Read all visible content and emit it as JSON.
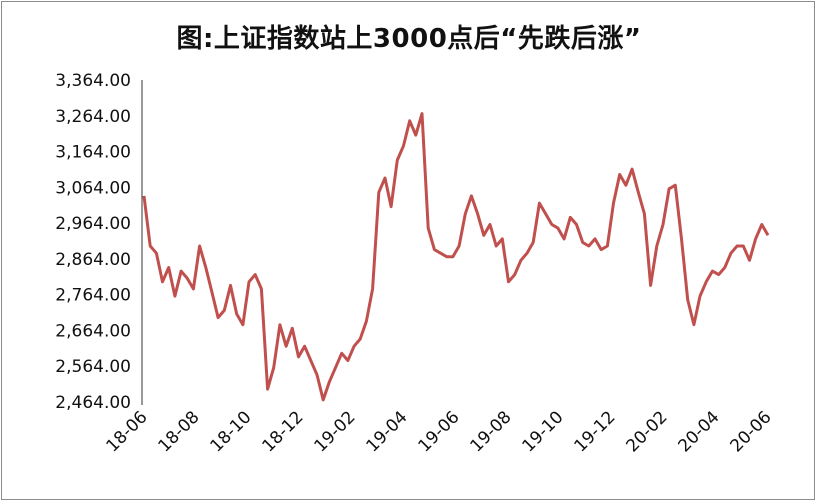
{
  "chart_data": {
    "type": "line",
    "title": "图:上证指数站上3000点后“先跌后涨”",
    "xlabel": "",
    "ylabel": "",
    "ylim": [
      2464,
      3364
    ],
    "y_ticks": [
      "3,364.00",
      "3,264.00",
      "3,164.00",
      "3,064.00",
      "2,964.00",
      "2,864.00",
      "2,764.00",
      "2,664.00",
      "2,564.00",
      "2,464.00"
    ],
    "x_ticks": [
      "18-06",
      "18-08",
      "18-10",
      "18-12",
      "19-02",
      "19-04",
      "19-06",
      "19-08",
      "19-10",
      "19-12",
      "20-02",
      "20-04",
      "20-06"
    ],
    "grid": false,
    "legend": "none",
    "line_color": "#c0504d",
    "series": [
      {
        "x": [
          "18-06",
          "18-06",
          "18-06",
          "18-06",
          "18-07",
          "18-07",
          "18-07",
          "18-07",
          "18-07",
          "18-08",
          "18-08",
          "18-08",
          "18-08",
          "18-09",
          "18-09",
          "18-09",
          "18-09",
          "18-10",
          "18-10",
          "18-10",
          "18-10",
          "18-10",
          "18-11",
          "18-11",
          "18-11",
          "18-11",
          "18-12",
          "18-12",
          "18-12",
          "18-12",
          "19-01",
          "19-01",
          "19-01",
          "19-01",
          "19-01",
          "19-02",
          "19-02",
          "19-02",
          "19-03",
          "19-03",
          "19-03",
          "19-03",
          "19-04",
          "19-04",
          "19-04",
          "19-04",
          "19-05",
          "19-05",
          "19-05",
          "19-05",
          "19-06",
          "19-06",
          "19-06",
          "19-06",
          "19-07",
          "19-07",
          "19-07",
          "19-07",
          "19-07",
          "19-08",
          "19-08",
          "19-08",
          "19-08",
          "19-09",
          "19-09",
          "19-09",
          "19-09",
          "19-10",
          "19-10",
          "19-10",
          "19-10",
          "19-11",
          "19-11",
          "19-11",
          "19-11",
          "19-12",
          "19-12",
          "19-12",
          "19-12",
          "20-01",
          "20-01",
          "20-01",
          "20-02",
          "20-02",
          "20-02",
          "20-02",
          "20-03",
          "20-03",
          "20-03",
          "20-03",
          "20-03",
          "20-04",
          "20-04",
          "20-04",
          "20-04",
          "20-05",
          "20-05",
          "20-05",
          "20-05",
          "20-06",
          "20-06",
          "20-06"
        ],
        "values": [
          3040,
          2900,
          2880,
          2800,
          2840,
          2760,
          2830,
          2810,
          2780,
          2900,
          2840,
          2770,
          2700,
          2720,
          2790,
          2710,
          2680,
          2800,
          2820,
          2780,
          2500,
          2560,
          2680,
          2620,
          2670,
          2590,
          2620,
          2580,
          2540,
          2470,
          2520,
          2560,
          2600,
          2580,
          2620,
          2640,
          2690,
          2780,
          3050,
          3090,
          3010,
          3140,
          3180,
          3250,
          3210,
          3270,
          2950,
          2890,
          2880,
          2870,
          2870,
          2900,
          2990,
          3040,
          2990,
          2930,
          2960,
          2900,
          2920,
          2800,
          2820,
          2860,
          2880,
          2910,
          3020,
          2990,
          2960,
          2950,
          2920,
          2980,
          2960,
          2910,
          2900,
          2920,
          2890,
          2900,
          3020,
          3100,
          3070,
          3115,
          3050,
          2990,
          2790,
          2900,
          2960,
          3060,
          3070,
          2920,
          2750,
          2680,
          2760,
          2800,
          2830,
          2820,
          2840,
          2880,
          2900,
          2900,
          2860,
          2920,
          2960,
          2930
        ]
      }
    ]
  }
}
